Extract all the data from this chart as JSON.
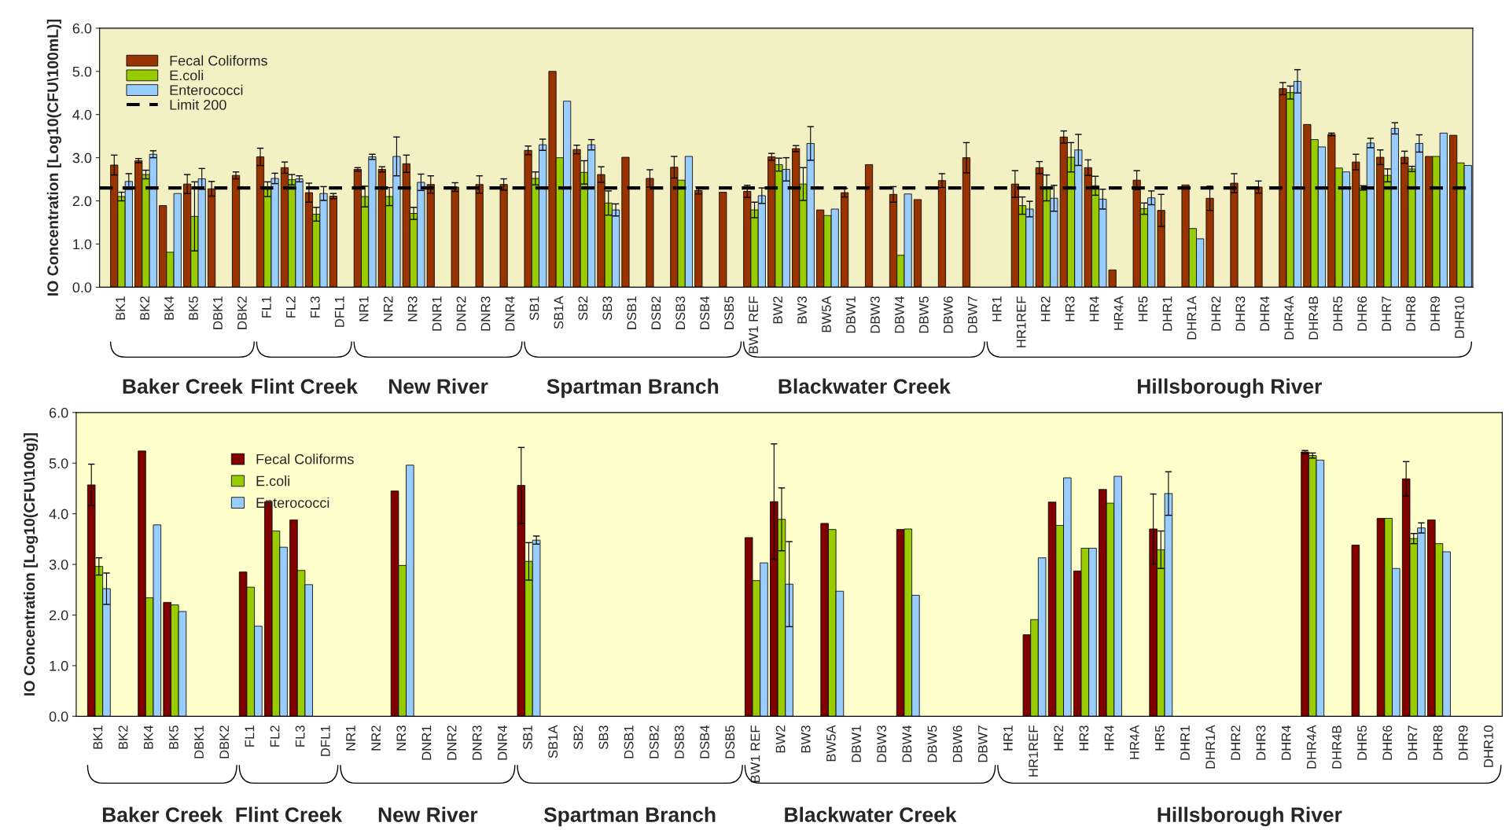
{
  "chart_data": [
    {
      "type": "bar",
      "ylabel": "IO Concentration [Log10(CFU\\100mL)]",
      "categories": [
        "BK1",
        "BK2",
        "BK4",
        "BK5",
        "DBK1",
        "DBK2",
        "FL1",
        "FL2",
        "FL3",
        "DFL1",
        "NR1",
        "NR2",
        "NR3",
        "DNR1",
        "DNR2",
        "DNR3",
        "DNR4",
        "SB1",
        "SB1A",
        "SB2",
        "SB3",
        "DSB1",
        "DSB2",
        "DSB3",
        "DSB4",
        "DSB5",
        "BW1 REF",
        "BW2",
        "BW3",
        "BW5A",
        "DBW1",
        "DBW3",
        "DBW4",
        "DBW5",
        "DBW6",
        "DBW7",
        "HR1",
        "HR1REF",
        "HR2",
        "HR3",
        "HR4",
        "HR4A",
        "HR5",
        "DHR1",
        "DHR1A",
        "DHR2",
        "DHR3",
        "DHR4",
        "DHR4A",
        "DHR4B",
        "DHR5",
        "DHR6",
        "DHR7",
        "DHR8",
        "DHR9",
        "DHR10"
      ],
      "series": [
        {
          "name": "Fecal Coliforms",
          "color": "#993300",
          "values": [
            2.83,
            2.93,
            1.89,
            2.39,
            2.28,
            2.59,
            3.02,
            2.77,
            2.19,
            2.11,
            2.73,
            2.73,
            2.86,
            2.38,
            2.32,
            2.38,
            2.38,
            3.17,
            5.0,
            3.19,
            2.61,
            3.01,
            2.52,
            2.78,
            2.24,
            2.2,
            2.22,
            3.02,
            3.21,
            1.79,
            2.19,
            2.84,
            2.15,
            2.03,
            2.47,
            3.0,
            null,
            2.39,
            2.77,
            3.48,
            2.77,
            0.4,
            2.48,
            1.78,
            2.37,
            2.06,
            2.41,
            2.32,
            4.6,
            3.77,
            3.54,
            2.9,
            3.01,
            3.01,
            3.03,
            3.52
          ],
          "errors": [
            0.23,
            0.05,
            null,
            0.22,
            0.17,
            0.08,
            0.2,
            0.13,
            0.22,
            0.06,
            0.04,
            0.06,
            0.2,
            0.2,
            0.1,
            0.2,
            0.13,
            0.1,
            null,
            0.1,
            0.18,
            null,
            0.2,
            0.25,
            0.08,
            null,
            0.14,
            0.08,
            0.07,
            null,
            0.1,
            null,
            0.18,
            null,
            0.16,
            0.35,
            null,
            0.31,
            0.14,
            0.14,
            0.18,
            null,
            0.22,
            0.37,
            null,
            0.28,
            0.22,
            0.14,
            0.14,
            null,
            0.03,
            0.18,
            0.17,
            0.14,
            null,
            null
          ]
        },
        {
          "name": "E.coli",
          "color": "#99cc00",
          "values": [
            2.1,
            2.61,
            0.81,
            1.64,
            null,
            null,
            2.27,
            2.49,
            1.69,
            null,
            2.1,
            2.1,
            1.71,
            null,
            null,
            null,
            null,
            2.52,
            3.0,
            2.66,
            1.95,
            null,
            null,
            2.48,
            null,
            null,
            1.79,
            2.84,
            2.39,
            1.66,
            null,
            null,
            0.74,
            null,
            null,
            null,
            null,
            1.89,
            2.3,
            3.01,
            2.35,
            null,
            1.82,
            null,
            1.36,
            null,
            null,
            null,
            4.51,
            3.42,
            2.76,
            2.3,
            2.59,
            2.74,
            3.03,
            2.88
          ],
          "errors": [
            0.1,
            0.1,
            null,
            0.8,
            null,
            null,
            0.17,
            0.12,
            0.16,
            null,
            0.24,
            0.21,
            0.14,
            null,
            null,
            null,
            null,
            0.15,
            null,
            0.27,
            0.28,
            null,
            null,
            null,
            null,
            null,
            0.18,
            0.15,
            0.38,
            null,
            null,
            null,
            null,
            null,
            null,
            null,
            null,
            0.2,
            0.3,
            0.34,
            0.22,
            null,
            0.13,
            null,
            null,
            null,
            null,
            null,
            0.15,
            null,
            null,
            0.05,
            0.15,
            0.06,
            null,
            null
          ]
        },
        {
          "name": "Enterococci",
          "color": "#99ccff",
          "values": [
            2.45,
            3.08,
            2.17,
            2.51,
            null,
            null,
            2.52,
            2.51,
            2.17,
            null,
            3.02,
            3.03,
            2.43,
            null,
            null,
            null,
            null,
            3.3,
            4.31,
            3.3,
            1.79,
            null,
            null,
            3.03,
            null,
            null,
            2.12,
            2.73,
            3.33,
            1.81,
            null,
            null,
            2.16,
            null,
            null,
            null,
            null,
            1.81,
            2.06,
            3.18,
            2.04,
            null,
            2.07,
            null,
            1.12,
            null,
            null,
            null,
            4.77,
            3.25,
            2.67,
            3.34,
            3.68,
            3.33,
            3.57,
            2.82
          ],
          "errors": [
            0.18,
            0.08,
            null,
            0.24,
            null,
            null,
            0.12,
            0.07,
            0.16,
            null,
            0.06,
            0.45,
            0.19,
            null,
            null,
            null,
            null,
            0.13,
            null,
            0.12,
            0.14,
            null,
            null,
            null,
            null,
            null,
            0.18,
            0.27,
            0.39,
            null,
            null,
            null,
            null,
            null,
            null,
            null,
            null,
            0.18,
            0.3,
            0.36,
            0.23,
            null,
            0.16,
            null,
            null,
            null,
            null,
            null,
            0.27,
            null,
            null,
            0.11,
            0.13,
            0.2,
            null,
            null
          ]
        }
      ],
      "ref_lines": [
        {
          "axis": "y",
          "value": 2.3,
          "label": "Limit 200",
          "color": "#000000",
          "line_style": "dashed"
        }
      ],
      "ylim": [
        0,
        6
      ],
      "yticks": [
        {
          "value": 0,
          "label": "0.0"
        },
        {
          "value": 1,
          "label": "1.0"
        },
        {
          "value": 2,
          "label": "2.0"
        },
        {
          "value": 3,
          "label": "3.0"
        },
        {
          "value": 4,
          "label": "4.0"
        },
        {
          "value": 5,
          "label": "5.0"
        },
        {
          "value": 6,
          "label": "6.0"
        }
      ],
      "legend": "top left",
      "grid": false,
      "annotations": [
        "Baker Creek",
        "Flint Creek",
        "New River",
        "Spartman Branch",
        "Blackwater Creek",
        "Hillsborough River"
      ]
    },
    {
      "type": "bar",
      "ylabel": "IO Concentration [Log10(CFU\\100g)]",
      "categories": [
        "BK1",
        "BK2",
        "BK4",
        "BK5",
        "DBK1",
        "DBK2",
        "FL1",
        "FL2",
        "FL3",
        "DFL1",
        "NR1",
        "NR2",
        "NR3",
        "DNR1",
        "DNR2",
        "DNR3",
        "DNR4",
        "SB1",
        "SB1A",
        "SB2",
        "SB3",
        "DSB1",
        "DSB2",
        "DSB3",
        "DSB4",
        "DSB5",
        "BW1 REF",
        "BW2",
        "BW3",
        "BW5A",
        "DBW1",
        "DBW3",
        "DBW4",
        "DBW5",
        "DBW6",
        "DBW7",
        "HR1",
        "HR1REF",
        "HR2",
        "HR3",
        "HR4",
        "HR4A",
        "HR5",
        "DHR1",
        "DHR1A",
        "DHR2",
        "DHR3",
        "DHR4",
        "DHR4A",
        "DHR4B",
        "DHR5",
        "DHR6",
        "DHR7",
        "DHR8",
        "DHR9",
        "DHR10"
      ],
      "series": [
        {
          "name": "Fecal Coliforms",
          "color": "#800000",
          "values": [
            4.57,
            null,
            5.24,
            2.25,
            null,
            null,
            2.85,
            4.24,
            3.88,
            null,
            null,
            null,
            4.45,
            null,
            null,
            null,
            null,
            4.56,
            null,
            null,
            null,
            null,
            null,
            null,
            null,
            null,
            3.53,
            4.24,
            null,
            3.81,
            null,
            null,
            3.69,
            null,
            null,
            null,
            null,
            1.61,
            4.23,
            2.87,
            4.48,
            null,
            3.7,
            null,
            null,
            null,
            null,
            null,
            5.22,
            null,
            3.38,
            3.91,
            4.69,
            3.88,
            null,
            null
          ],
          "errors": [
            0.41,
            null,
            null,
            null,
            null,
            null,
            null,
            null,
            null,
            null,
            null,
            null,
            null,
            null,
            null,
            null,
            null,
            0.75,
            null,
            null,
            null,
            null,
            null,
            null,
            null,
            null,
            null,
            1.14,
            null,
            null,
            null,
            null,
            null,
            null,
            null,
            null,
            null,
            null,
            null,
            null,
            null,
            null,
            0.69,
            null,
            null,
            null,
            null,
            null,
            0.03,
            null,
            null,
            null,
            0.34,
            null,
            null,
            null
          ]
        },
        {
          "name": "E.coli",
          "color": "#99cc00",
          "values": [
            2.96,
            null,
            2.34,
            2.2,
            null,
            null,
            2.55,
            3.66,
            2.88,
            null,
            null,
            null,
            2.98,
            null,
            null,
            null,
            null,
            3.06,
            null,
            null,
            null,
            null,
            null,
            null,
            null,
            null,
            2.68,
            3.89,
            null,
            3.69,
            null,
            null,
            3.7,
            null,
            null,
            null,
            null,
            1.91,
            3.77,
            3.32,
            4.21,
            null,
            3.29,
            null,
            null,
            null,
            null,
            null,
            5.15,
            null,
            null,
            3.91,
            3.51,
            3.41,
            null,
            null
          ],
          "errors": [
            0.17,
            null,
            null,
            null,
            null,
            null,
            null,
            null,
            null,
            null,
            null,
            null,
            null,
            null,
            null,
            null,
            null,
            0.37,
            null,
            null,
            null,
            null,
            null,
            null,
            null,
            null,
            null,
            0.62,
            null,
            null,
            null,
            null,
            null,
            null,
            null,
            null,
            null,
            null,
            null,
            null,
            null,
            null,
            0.37,
            null,
            null,
            null,
            null,
            null,
            0.05,
            null,
            null,
            null,
            0.1,
            null,
            null,
            null
          ]
        },
        {
          "name": "Enterococci",
          "color": "#99ccff",
          "values": [
            2.52,
            null,
            3.78,
            2.07,
            null,
            null,
            1.78,
            3.34,
            2.6,
            null,
            null,
            null,
            4.96,
            null,
            null,
            null,
            null,
            3.48,
            null,
            null,
            null,
            null,
            null,
            null,
            null,
            null,
            3.03,
            2.61,
            null,
            2.47,
            null,
            null,
            2.39,
            null,
            null,
            null,
            null,
            3.13,
            4.71,
            3.32,
            4.74,
            null,
            4.4,
            null,
            null,
            null,
            null,
            null,
            5.06,
            null,
            null,
            2.92,
            3.72,
            3.25,
            null,
            null
          ],
          "errors": [
            0.31,
            null,
            null,
            null,
            null,
            null,
            null,
            null,
            null,
            null,
            null,
            null,
            null,
            null,
            null,
            null,
            null,
            0.08,
            null,
            null,
            null,
            null,
            null,
            null,
            null,
            null,
            null,
            0.84,
            null,
            null,
            null,
            null,
            null,
            null,
            null,
            null,
            null,
            null,
            null,
            null,
            null,
            null,
            0.43,
            null,
            null,
            null,
            null,
            null,
            null,
            null,
            null,
            null,
            0.1,
            null,
            null,
            null
          ]
        }
      ],
      "ylim": [
        0,
        6
      ],
      "yticks": [
        {
          "value": 0,
          "label": "0.0"
        },
        {
          "value": 1,
          "label": "1.0"
        },
        {
          "value": 2,
          "label": "2.0"
        },
        {
          "value": 3,
          "label": "3.0"
        },
        {
          "value": 4,
          "label": "4.0"
        },
        {
          "value": 5,
          "label": "5.0"
        },
        {
          "value": 6,
          "label": "6.0"
        }
      ],
      "legend": "top left",
      "grid": false,
      "annotations": [
        "Baker Creek",
        "Flint Creek",
        "New River",
        "Spartman Branch",
        "Blackwater Creek",
        "Hillsborough River"
      ]
    }
  ]
}
